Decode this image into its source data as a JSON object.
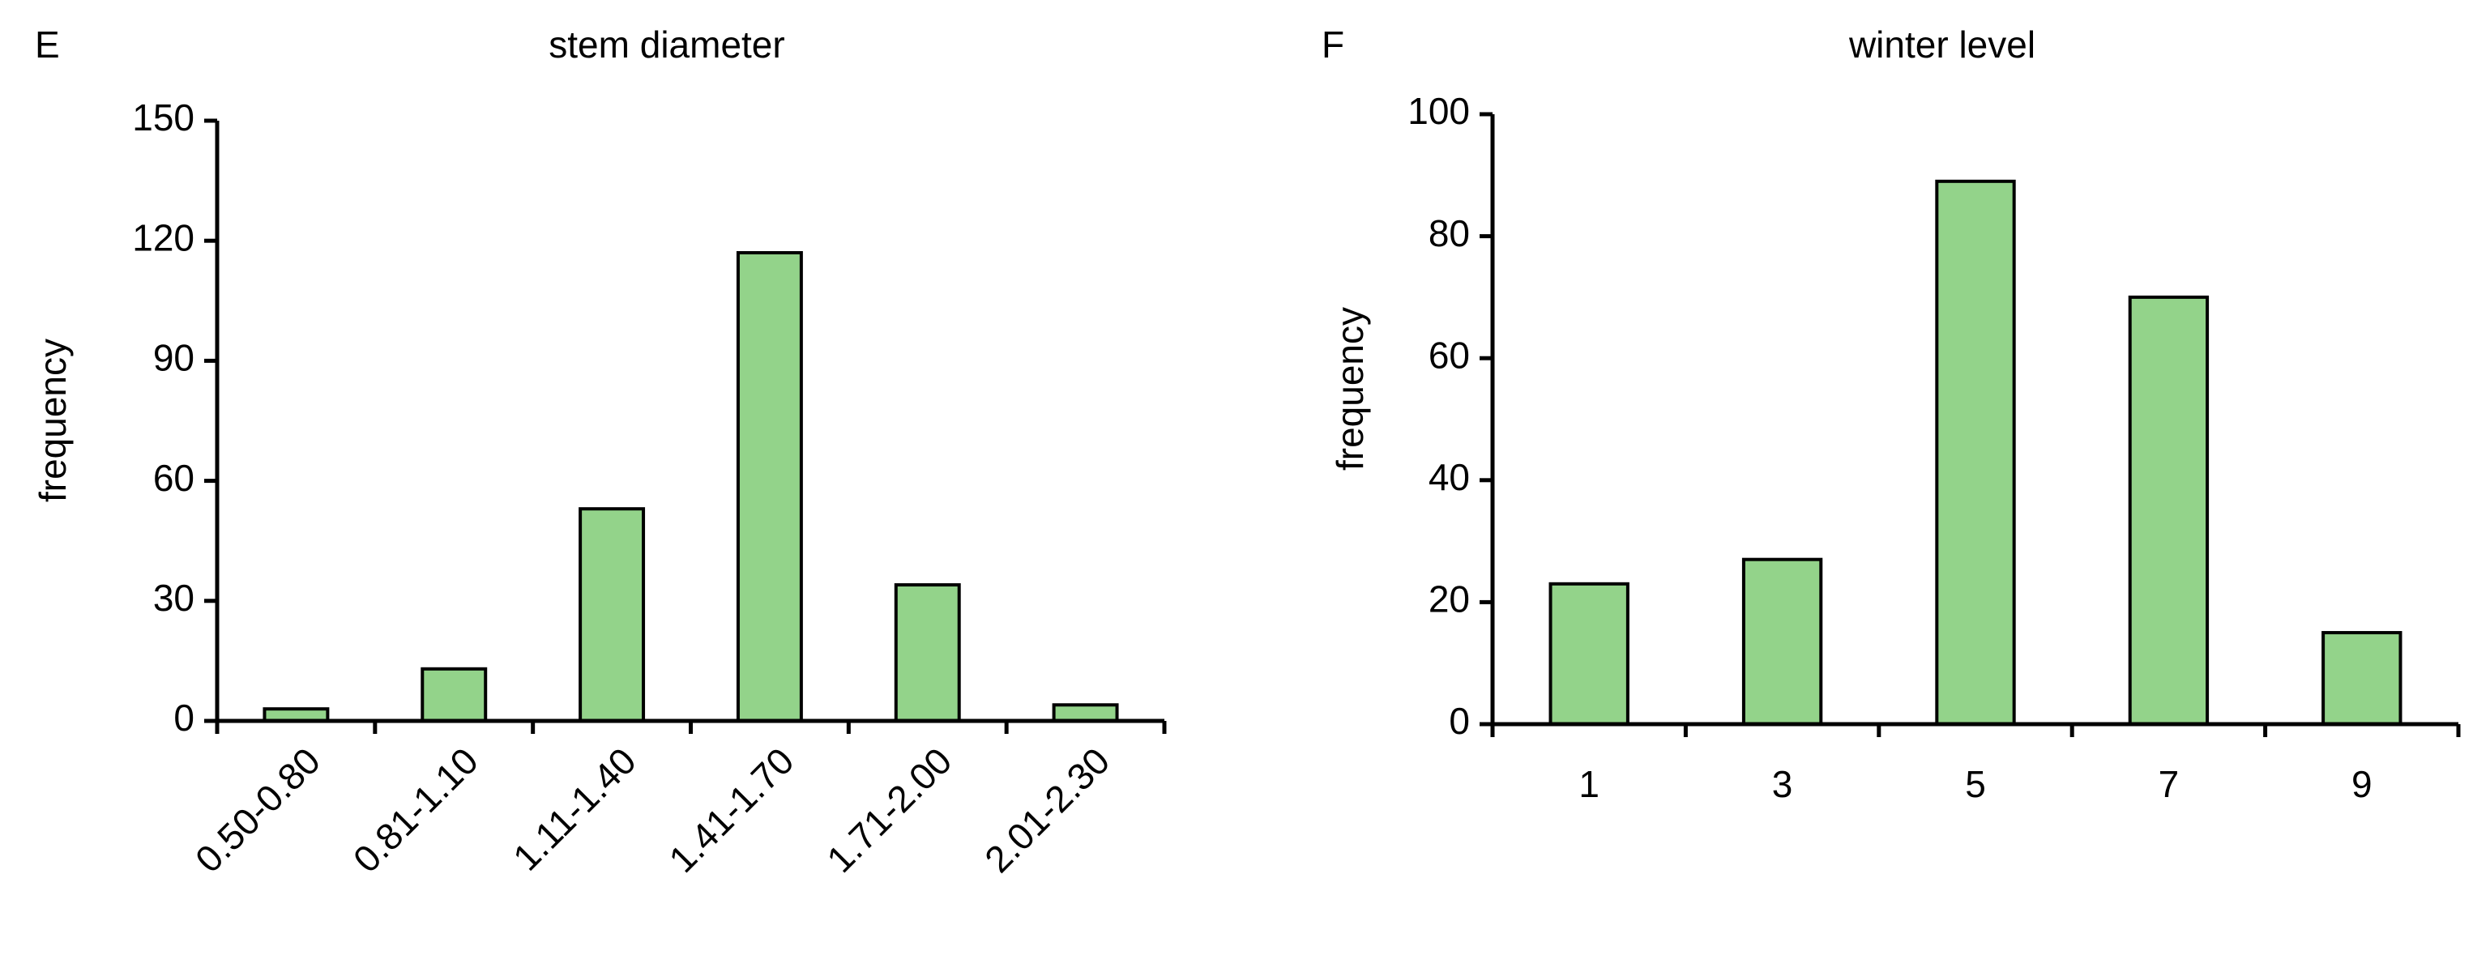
{
  "chart_data": [
    {
      "type": "bar",
      "panel": "E",
      "title": "stem diameter",
      "y_label": "frequency",
      "categories": [
        "0.50-0.80",
        "0.81-1.10",
        "1.11-1.40",
        "1.41-1.70",
        "1.71-2.00",
        "2.01-2.30"
      ],
      "values": [
        3,
        13,
        53,
        117,
        34,
        4
      ],
      "color": "#93d38a",
      "ylim": [
        0,
        150
      ],
      "yticks": [
        0,
        30,
        60,
        90,
        120,
        150
      ],
      "grid": false
    },
    {
      "type": "bar",
      "panel": "F",
      "title": "winter level",
      "y_label": "frequency",
      "categories": [
        "1",
        "3",
        "5",
        "7",
        "9"
      ],
      "values": [
        23,
        27,
        89,
        70,
        15
      ],
      "color": "#93d38a",
      "ylim": [
        0,
        100
      ],
      "yticks": [
        0,
        20,
        40,
        60,
        80,
        100
      ],
      "grid": false
    }
  ]
}
